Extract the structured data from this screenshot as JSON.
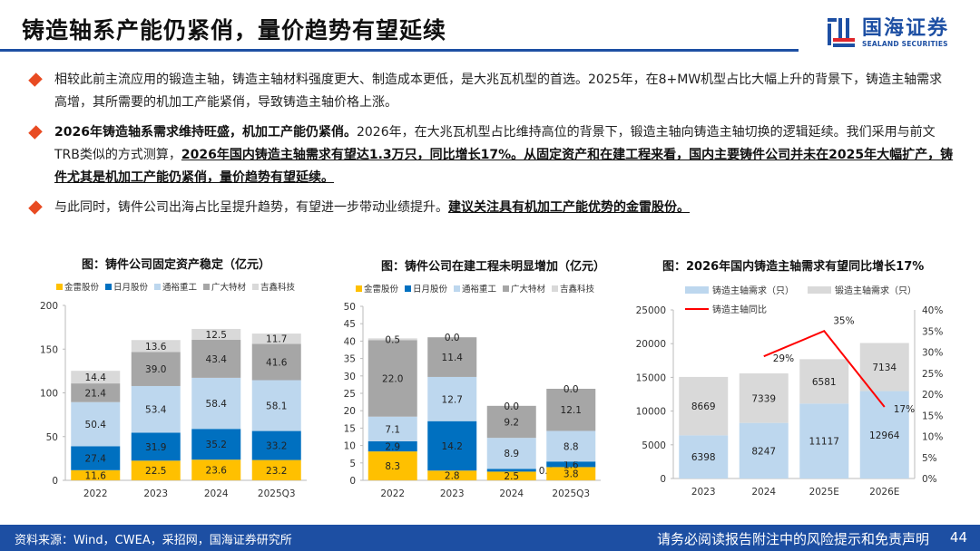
{
  "header": {
    "title": "铸造轴系产能仍紧俏，量价趋势有望延续",
    "logo_cn": "国海证券",
    "logo_en": "SEALAND SECURITIES"
  },
  "bullets": [
    {
      "plain1": "相较此前主流应用的锻造主轴，铸造主轴材料强度更大、制造成本更低，是大兆瓦机型的首选。2025年，在8+MW机型占比大幅上升的背景下，铸造主轴需求高增，其所需要的机加工产能紧俏，导致铸造主轴价格上涨。"
    },
    {
      "bold": "2026年铸造轴系需求维持旺盛，机加工产能仍紧俏。",
      "plain1": "2026年，在大兆瓦机型占比维持高位的背景下，锻造主轴向铸造主轴切换的逻辑延续。我们采用与前文TRB类似的方式测算，",
      "underline": "2026年国内铸造主轴需求有望达1.3万只，同比增长17%。从固定资产和在建工程来看，国内主要铸件公司并未在2025年大幅扩产，铸件尤其是机加工产能仍紧俏，量价趋势有望延续。"
    },
    {
      "plain1": "与此同时，铸件公司出海占比呈提升趋势，有望进一步带动业绩提升。",
      "underline": "建议关注具有机加工产能优势的金雷股份。"
    }
  ],
  "colors": {
    "jinlei": "#ffc000",
    "riyue": "#0070c0",
    "tongyu": "#bdd7ee",
    "guangda": "#a6a6a6",
    "jixin": "#d9d9d9",
    "red": "#ff0000"
  },
  "chart_data": [
    {
      "type": "bar",
      "stacked": true,
      "title": "图：铸件公司固定资产稳定（亿元）",
      "categories": [
        "2022",
        "2023",
        "2024",
        "2025Q3"
      ],
      "ylim": [
        0,
        200
      ],
      "yticks": [
        0,
        50,
        100,
        150,
        200
      ],
      "series": [
        {
          "name": "金雷股份",
          "values": [
            11.6,
            22.5,
            23.6,
            23.2
          ]
        },
        {
          "name": "日月股份",
          "values": [
            27.4,
            31.9,
            35.2,
            33.2
          ]
        },
        {
          "name": "通裕重工",
          "values": [
            50.4,
            53.4,
            58.4,
            58.1
          ]
        },
        {
          "name": "广大特材",
          "values": [
            21.4,
            39.0,
            43.4,
            41.6
          ]
        },
        {
          "name": "吉鑫科技",
          "values": [
            14.4,
            13.6,
            12.5,
            11.7
          ]
        }
      ]
    },
    {
      "type": "bar",
      "stacked": true,
      "title": "图：铸件公司在建工程未明显增加（亿元）",
      "categories": [
        "2022",
        "2023",
        "2024",
        "2025Q3"
      ],
      "ylim": [
        0,
        50
      ],
      "yticks": [
        0,
        5,
        10,
        15,
        20,
        25,
        30,
        35,
        40,
        45,
        50
      ],
      "series": [
        {
          "name": "金雷股份",
          "values": [
            8.3,
            2.8,
            2.5,
            3.8
          ]
        },
        {
          "name": "日月股份",
          "values": [
            2.9,
            14.2,
            0.8,
            1.6
          ]
        },
        {
          "name": "通裕重工",
          "values": [
            7.1,
            12.7,
            8.9,
            8.8
          ]
        },
        {
          "name": "广大特材",
          "values": [
            22.0,
            11.4,
            9.2,
            12.1
          ]
        },
        {
          "name": "吉鑫科技",
          "values": [
            0.5,
            0.0,
            0.0,
            0.0
          ]
        }
      ]
    },
    {
      "type": "bar",
      "stacked": true,
      "title": "图：2026年国内铸造主轴需求有望同比增长17%",
      "categories": [
        "2023",
        "2024",
        "2025E",
        "2026E"
      ],
      "ylim": [
        0,
        25000
      ],
      "yticks": [
        0,
        5000,
        10000,
        15000,
        20000,
        25000
      ],
      "y2lim": [
        0,
        40
      ],
      "y2ticks": [
        "0%",
        "5%",
        "10%",
        "15%",
        "20%",
        "25%",
        "30%",
        "35%",
        "40%"
      ],
      "series": [
        {
          "name": "铸造主轴需求（只）",
          "values": [
            6398,
            8247,
            11117,
            12964
          ]
        },
        {
          "name": "锻造主轴需求（只）",
          "values": [
            8669,
            7339,
            6581,
            7134
          ]
        }
      ],
      "line": {
        "name": "铸造主轴同比",
        "values": [
          null,
          29,
          35,
          17
        ],
        "labels": [
          "",
          "29%",
          "35%",
          "17%"
        ]
      }
    }
  ],
  "footer": {
    "source": "资料来源：Wind，CWEA，采招网，国海证券研究所",
    "disclaimer": "请务必阅读报告附注中的风险提示和免责声明",
    "page": "44"
  }
}
